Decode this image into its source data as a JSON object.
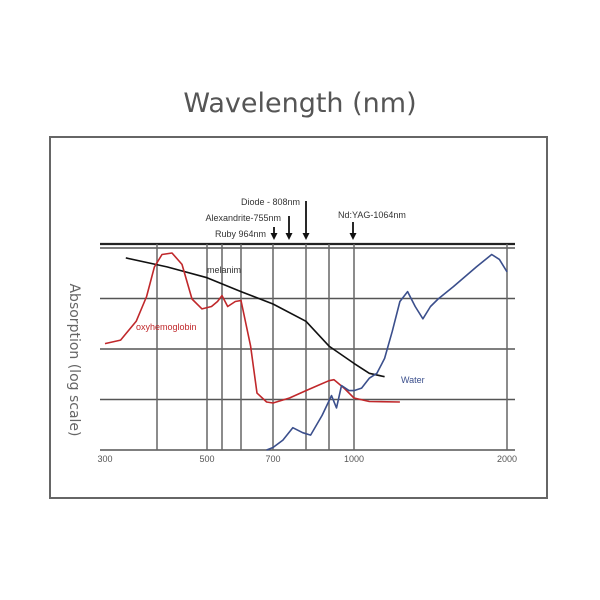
{
  "chart_data": {
    "type": "line",
    "title": "Wavelength (nm)",
    "ylabel": "Absorption (log scale)",
    "xlabel": "",
    "x_ticks": [
      300,
      500,
      700,
      1000,
      2000
    ],
    "x_gridlines": [
      400,
      500,
      550,
      600,
      700,
      800,
      900,
      1000,
      2000
    ],
    "xlim": [
      300,
      2000
    ],
    "ylim": [
      0,
      4
    ],
    "grid": true,
    "series": [
      {
        "name": "melanim",
        "color": "#111111",
        "points": [
          [
            340,
            3.88
          ],
          [
            420,
            3.7
          ],
          [
            500,
            3.48
          ],
          [
            600,
            3.2
          ],
          [
            700,
            2.95
          ],
          [
            800,
            2.6
          ],
          [
            900,
            2.1
          ],
          [
            1000,
            1.75
          ],
          [
            1100,
            1.55
          ],
          [
            1200,
            1.48
          ]
        ]
      },
      {
        "name": "oxyhemoglobin",
        "color": "#c0282b",
        "points": [
          [
            300,
            2.15
          ],
          [
            330,
            2.22
          ],
          [
            360,
            2.6
          ],
          [
            380,
            3.1
          ],
          [
            395,
            3.7
          ],
          [
            410,
            3.95
          ],
          [
            430,
            3.98
          ],
          [
            450,
            3.75
          ],
          [
            470,
            3.05
          ],
          [
            490,
            2.85
          ],
          [
            515,
            2.9
          ],
          [
            535,
            3.0
          ],
          [
            550,
            3.12
          ],
          [
            565,
            2.9
          ],
          [
            585,
            3.0
          ],
          [
            600,
            3.02
          ],
          [
            630,
            2.1
          ],
          [
            650,
            1.15
          ],
          [
            680,
            0.97
          ],
          [
            700,
            0.95
          ],
          [
            750,
            1.05
          ],
          [
            800,
            1.2
          ],
          [
            850,
            1.3
          ],
          [
            900,
            1.4
          ],
          [
            920,
            1.42
          ],
          [
            960,
            1.25
          ],
          [
            1000,
            1.05
          ],
          [
            1100,
            0.98
          ],
          [
            1300,
            0.97
          ]
        ]
      },
      {
        "name": "Water",
        "color": "#3b4f8c",
        "points": [
          [
            680,
            0.0
          ],
          [
            700,
            0.05
          ],
          [
            730,
            0.2
          ],
          [
            760,
            0.45
          ],
          [
            790,
            0.35
          ],
          [
            820,
            0.3
          ],
          [
            870,
            0.7
          ],
          [
            910,
            1.1
          ],
          [
            930,
            0.85
          ],
          [
            950,
            1.3
          ],
          [
            980,
            1.2
          ],
          [
            1000,
            1.2
          ],
          [
            1050,
            1.25
          ],
          [
            1100,
            1.45
          ],
          [
            1150,
            1.55
          ],
          [
            1200,
            1.85
          ],
          [
            1250,
            2.4
          ],
          [
            1300,
            3.0
          ],
          [
            1350,
            3.2
          ],
          [
            1400,
            2.9
          ],
          [
            1450,
            2.65
          ],
          [
            1500,
            2.9
          ],
          [
            1550,
            3.05
          ],
          [
            1650,
            3.3
          ],
          [
            1800,
            3.7
          ],
          [
            1900,
            3.95
          ],
          [
            1950,
            3.85
          ],
          [
            2000,
            3.6
          ]
        ]
      }
    ],
    "annotations": [
      {
        "text": "Diode - 808nm",
        "x": 800
      },
      {
        "text": "Alexandrite-755nm",
        "x": 750
      },
      {
        "text": "Ruby 964nm",
        "x": 700
      },
      {
        "text": "Nd:YAG-1064nm",
        "x": 1000
      }
    ]
  }
}
